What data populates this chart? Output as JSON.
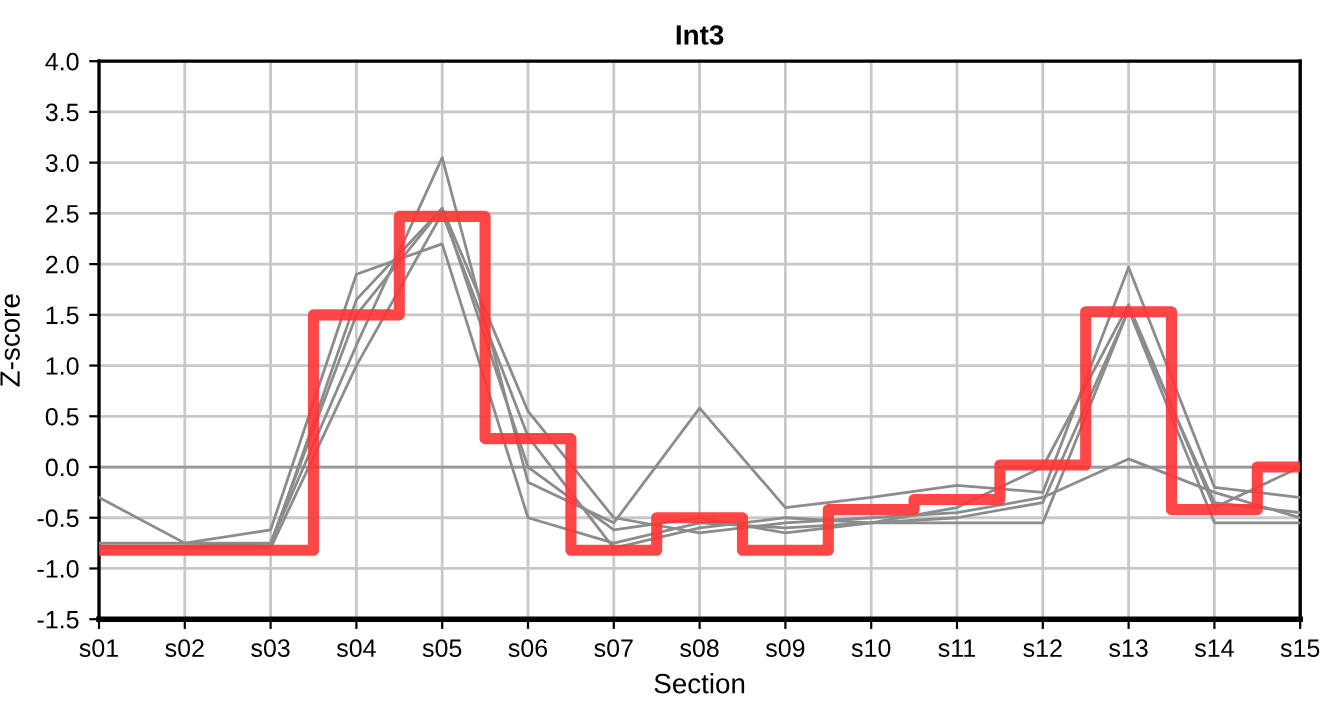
{
  "chart_data": {
    "type": "line",
    "title": "Int3",
    "xlabel": "Section",
    "ylabel": "Z-score",
    "categories": [
      "s01",
      "s02",
      "s03",
      "s04",
      "s05",
      "s06",
      "s07",
      "s08",
      "s09",
      "s10",
      "s11",
      "s12",
      "s13",
      "s14",
      "s15"
    ],
    "series": [
      {
        "color": "#8c8c8c",
        "values": [
          -0.3,
          -0.75,
          -0.62,
          1.9,
          2.2,
          -0.5,
          -0.75,
          -0.55,
          -0.6,
          -0.55,
          -0.5,
          -0.35,
          1.55,
          -0.35,
          -0.45
        ]
      },
      {
        "color": "#8c8c8c",
        "values": [
          -0.8,
          -0.78,
          -0.75,
          1.2,
          3.05,
          -0.15,
          -0.55,
          0.58,
          -0.4,
          -0.3,
          -0.18,
          -0.25,
          1.97,
          -0.2,
          -0.3
        ]
      },
      {
        "color": "#8c8c8c",
        "values": [
          -0.75,
          -0.75,
          -0.75,
          1.5,
          2.55,
          0.55,
          -0.5,
          -0.65,
          -0.55,
          -0.5,
          -0.45,
          -0.3,
          0.08,
          -0.25,
          -0.5
        ]
      },
      {
        "color": "#8c8c8c",
        "values": [
          -0.8,
          -0.8,
          -0.8,
          1.0,
          2.5,
          0.3,
          -0.8,
          -0.6,
          -0.5,
          -0.55,
          -0.55,
          -0.55,
          1.55,
          -0.55,
          -0.55
        ]
      },
      {
        "color": "#8c8c8c",
        "values": [
          -0.78,
          -0.78,
          -0.78,
          1.65,
          2.55,
          0.0,
          -0.62,
          -0.5,
          -0.65,
          -0.55,
          -0.4,
          0.0,
          1.6,
          -0.4,
          0.0
        ]
      },
      {
        "type": "step",
        "color": "#ff3333",
        "values": [
          -0.82,
          -0.82,
          -0.82,
          1.5,
          2.47,
          0.28,
          -0.82,
          -0.5,
          -0.82,
          -0.42,
          -0.32,
          0.02,
          1.53,
          -0.42,
          0.0
        ]
      }
    ],
    "ylim": [
      -1.5,
      4.0
    ],
    "yticks": [
      {
        "value": -1.5,
        "label": "-1.5"
      },
      {
        "value": -1.0,
        "label": "-1.0"
      },
      {
        "value": -0.5,
        "label": "-0.5"
      },
      {
        "value": 0.0,
        "label": "0.0"
      },
      {
        "value": 0.5,
        "label": "0.5"
      },
      {
        "value": 1.0,
        "label": "1.0"
      },
      {
        "value": 1.5,
        "label": "1.5"
      },
      {
        "value": 2.0,
        "label": "2.0"
      },
      {
        "value": 2.5,
        "label": "2.5"
      },
      {
        "value": 3.0,
        "label": "3.0"
      },
      {
        "value": 3.5,
        "label": "3.5"
      },
      {
        "value": 4.0,
        "label": "4.0"
      }
    ],
    "ref_lines": [
      {
        "axis": "y",
        "value": 0,
        "color": "#999999"
      }
    ],
    "grid": true,
    "legend": false
  }
}
